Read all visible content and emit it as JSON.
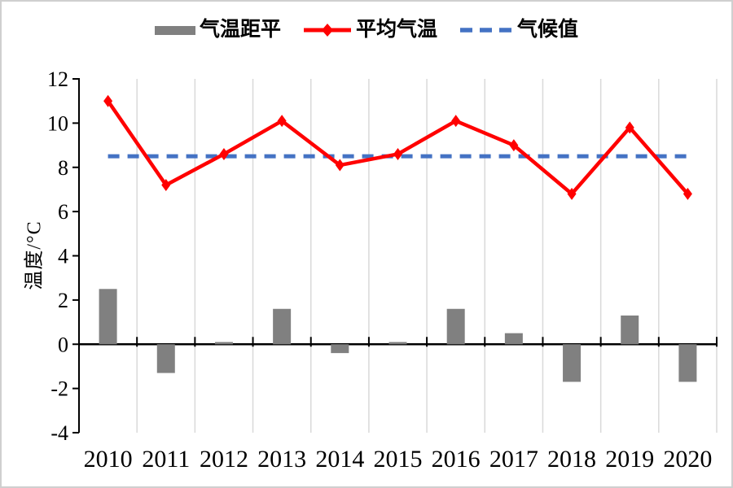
{
  "chart_data": {
    "type": "combo",
    "title": "",
    "categories": [
      "2010",
      "2011",
      "2012",
      "2013",
      "2014",
      "2015",
      "2016",
      "2017",
      "2018",
      "2019",
      "2020"
    ],
    "series": [
      {
        "name": "气温距平",
        "type": "bar",
        "color": "#808080",
        "values": [
          2.5,
          -1.3,
          0.1,
          1.6,
          -0.4,
          0.1,
          1.6,
          0.5,
          -1.7,
          1.3,
          -1.7
        ]
      },
      {
        "name": "平均气温",
        "type": "line",
        "marker": "diamond",
        "color": "#ff0000",
        "values": [
          11.0,
          7.2,
          8.6,
          10.1,
          8.1,
          8.6,
          10.1,
          9.0,
          6.8,
          9.8,
          6.8
        ]
      },
      {
        "name": "气候值",
        "type": "dashed-line",
        "color": "#4472c4",
        "values": [
          8.5,
          8.5,
          8.5,
          8.5,
          8.5,
          8.5,
          8.5,
          8.5,
          8.5,
          8.5,
          8.5
        ]
      }
    ],
    "xlabel": "",
    "ylabel": "温度/°C",
    "ylim": [
      -4,
      12
    ],
    "ytick_step": 2,
    "grid": "vertical-category-boundaries",
    "legend_position": "top",
    "colors": {
      "grid": "#d9d9d9",
      "axis": "#000000",
      "text": "#000000",
      "background": "#ffffff",
      "frame_border": "#cfcfcf"
    }
  }
}
